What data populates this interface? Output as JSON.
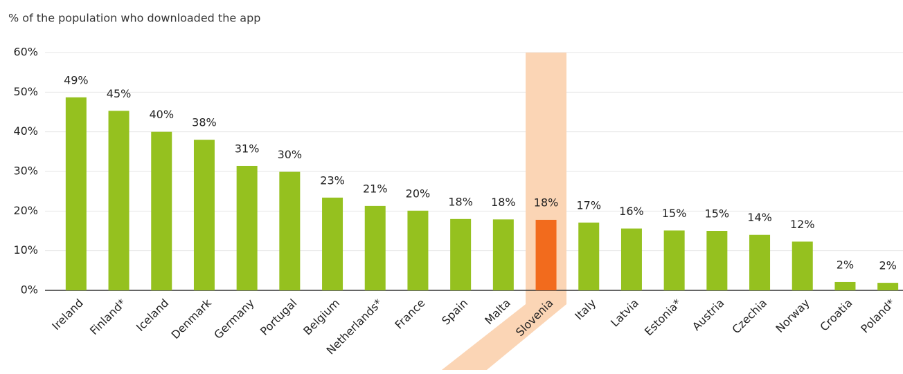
{
  "chart_data": {
    "type": "bar",
    "subtitle": "% of the population who downloaded the app",
    "categories": [
      "Ireland",
      "Finland*",
      "Iceland",
      "Denmark",
      "Germany",
      "Portugal",
      "Belgium",
      "Netherlands*",
      "France",
      "Spain",
      "Malta",
      "Slovenia",
      "Italy",
      "Latvia",
      "Estonia*",
      "Austria",
      "Czechia",
      "Norway",
      "Croatia",
      "Poland*"
    ],
    "values": [
      48.7,
      45.3,
      40.0,
      38.0,
      31.4,
      29.9,
      23.4,
      21.3,
      20.1,
      18.0,
      17.9,
      17.8,
      17.1,
      15.6,
      15.1,
      15.0,
      14.0,
      12.3,
      2.1,
      1.9
    ],
    "value_labels": [
      "49%",
      "45%",
      "40%",
      "38%",
      "31%",
      "30%",
      "23%",
      "21%",
      "20%",
      "18%",
      "18%",
      "18%",
      "17%",
      "16%",
      "15%",
      "15%",
      "14%",
      "12%",
      "2%",
      "2%"
    ],
    "color": "#95c11f",
    "highlight": {
      "index": 11,
      "color": "#f26b1d",
      "band_color": "#fbd5b5"
    },
    "ylim": [
      0,
      60
    ],
    "yticks": [
      {
        "value": 0,
        "label": "0%"
      },
      {
        "value": 10,
        "label": "10%"
      },
      {
        "value": 20,
        "label": "20%"
      },
      {
        "value": 30,
        "label": "30%"
      },
      {
        "value": 40,
        "label": "40%"
      },
      {
        "value": 50,
        "label": "50%"
      },
      {
        "value": 60,
        "label": "60%"
      }
    ],
    "grid": true
  }
}
